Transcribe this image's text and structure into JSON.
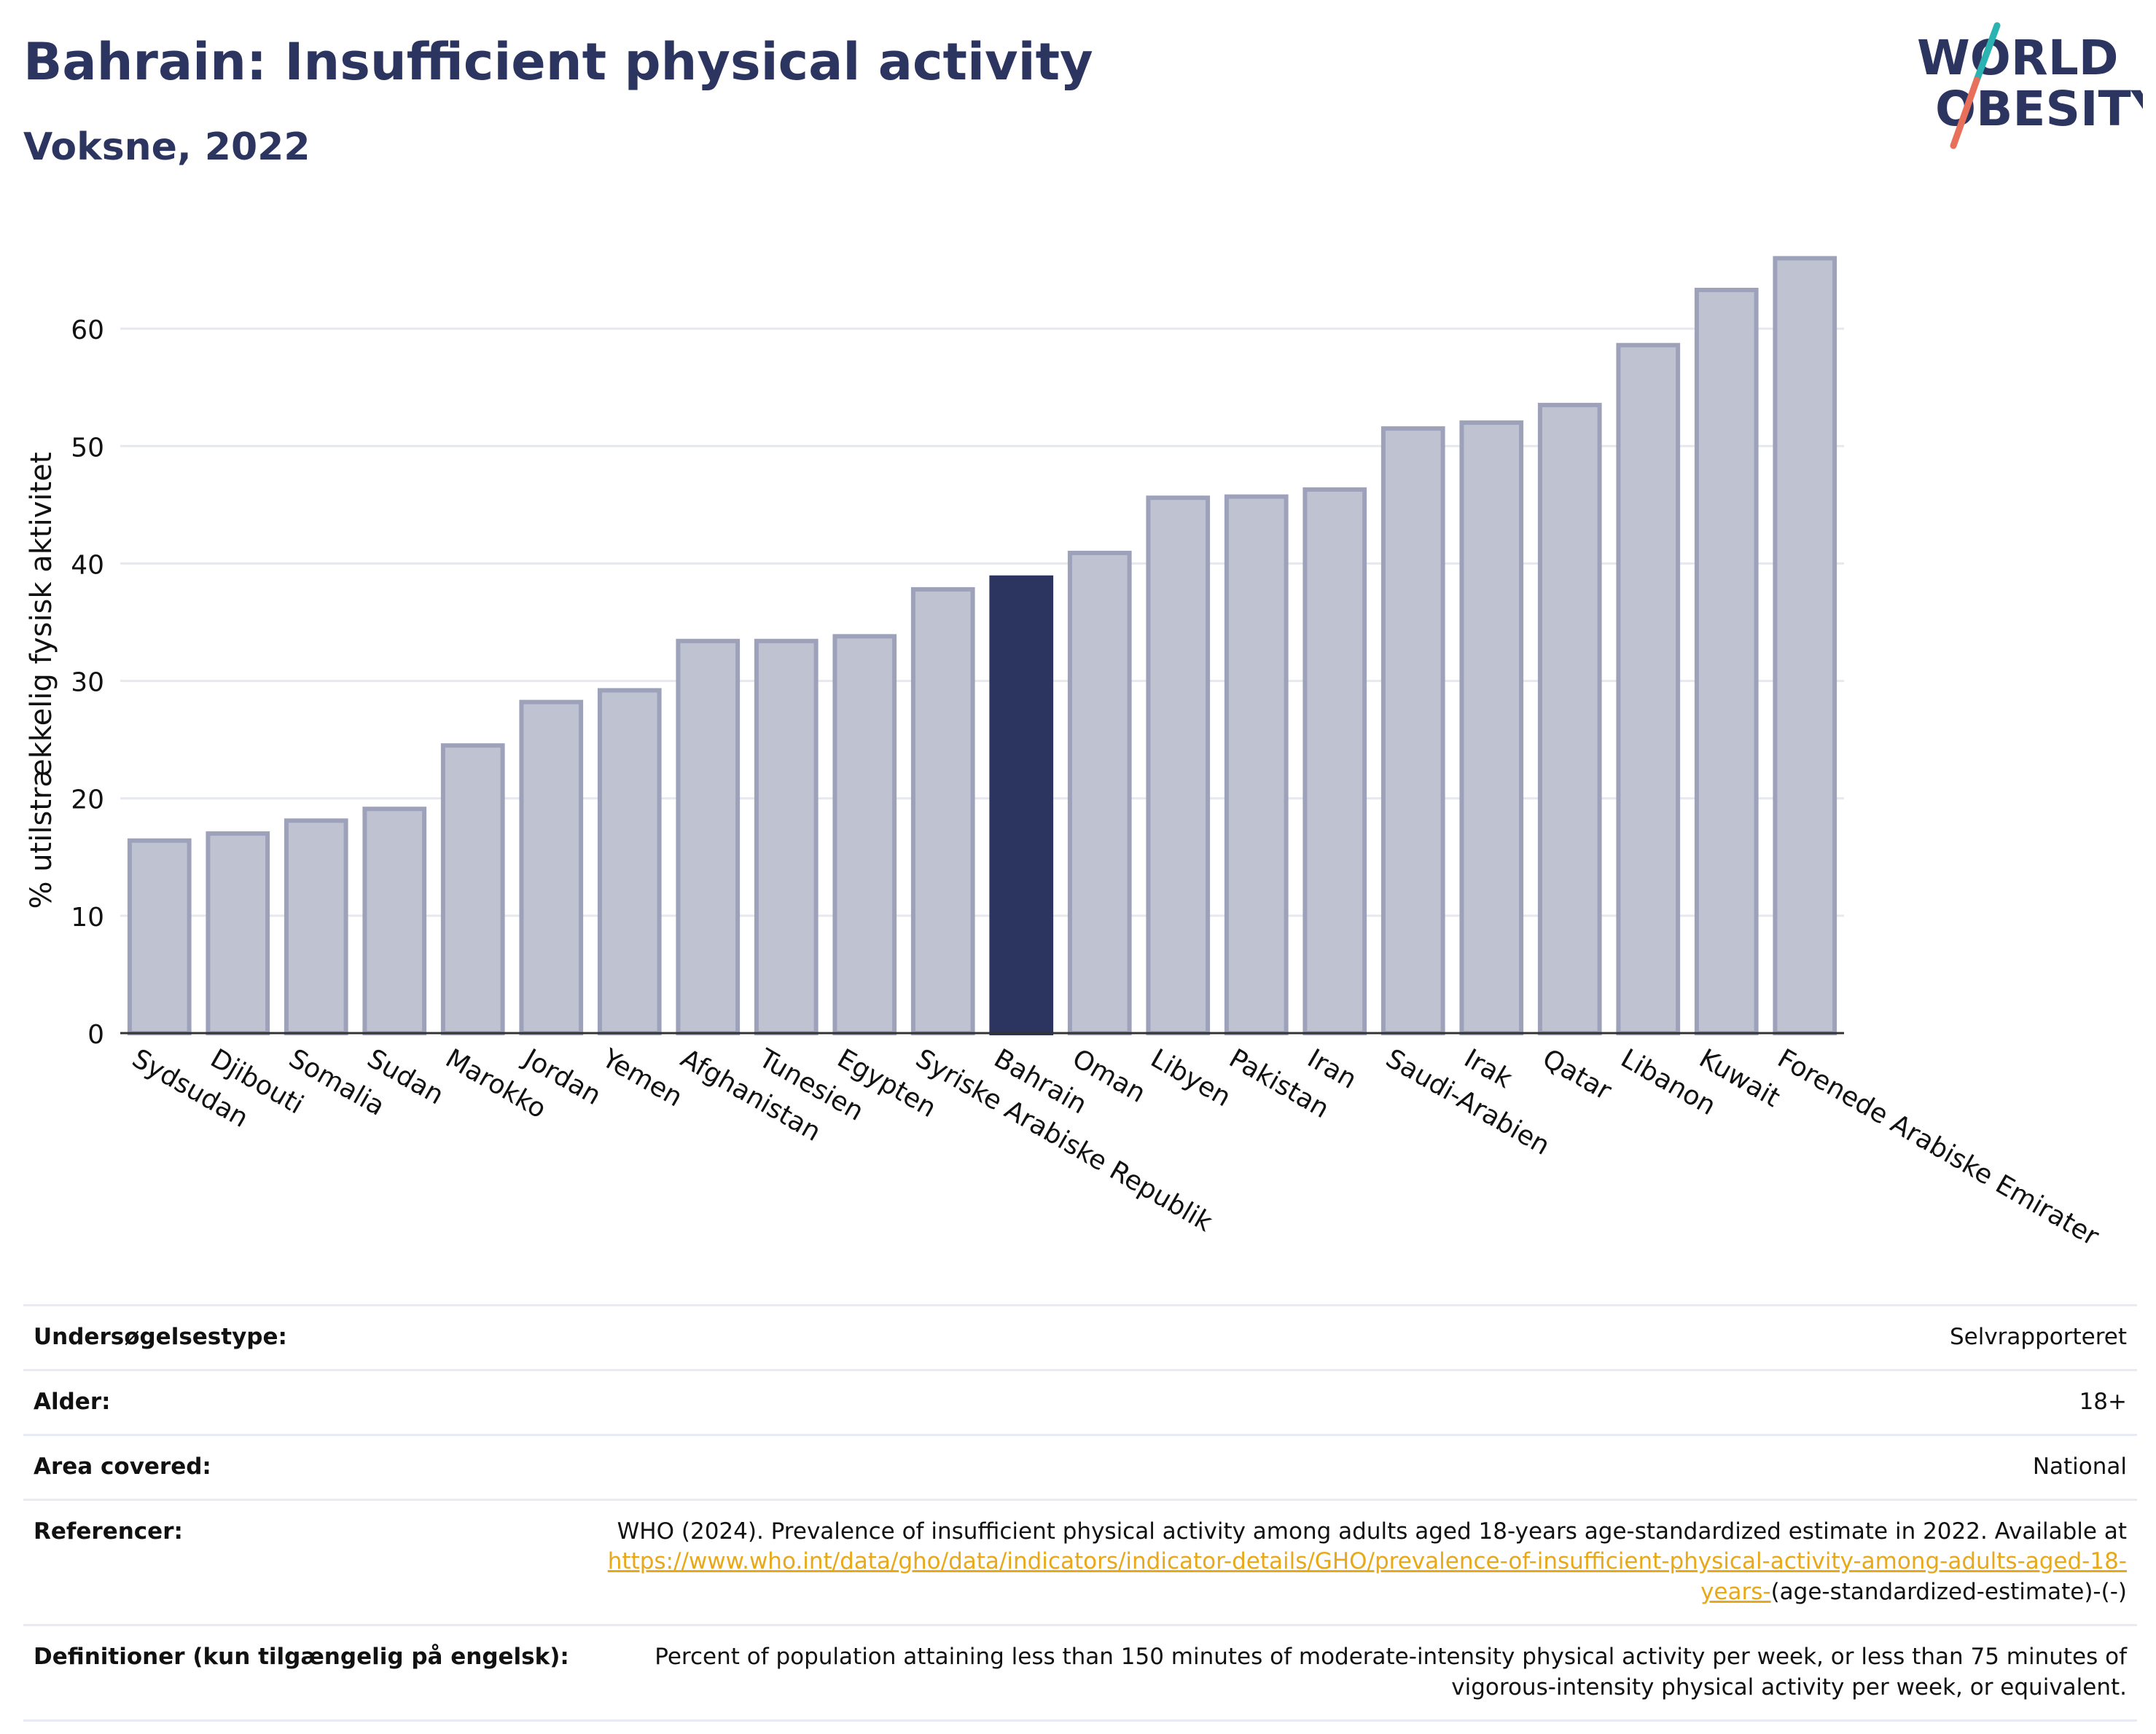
{
  "header": {
    "title": "Bahrain: Insufficient physical activity",
    "subtitle": "Voksne, 2022"
  },
  "logo": {
    "line1": "WORLD",
    "line2": "OBESITY",
    "colors": {
      "text": "#2c3560",
      "slash_top": "#2bb3b1",
      "slash_bottom": "#e8705a"
    }
  },
  "chart_data": {
    "type": "bar",
    "categories": [
      "Sydsudan",
      "Djibouti",
      "Somalia",
      "Sudan",
      "Marokko",
      "Jordan",
      "Yemen",
      "Afghanistan",
      "Tunesien",
      "Egypten",
      "Syriske Arabiske Republik",
      "Bahrain",
      "Oman",
      "Libyen",
      "Pakistan",
      "Iran",
      "Saudi-Arabien",
      "Irak",
      "Qatar",
      "Libanon",
      "Kuwait",
      "Forenede Arabiske Emirater"
    ],
    "values": [
      16.4,
      17.0,
      18.1,
      19.1,
      24.5,
      28.2,
      29.2,
      33.4,
      33.4,
      33.8,
      37.8,
      38.8,
      40.9,
      45.6,
      45.7,
      46.3,
      51.5,
      52.0,
      53.5,
      58.6,
      63.3,
      66.0
    ],
    "highlight": "Bahrain",
    "title": "",
    "xlabel": "",
    "ylabel": "% utilstrækkelig fysisk aktivitet",
    "ylim": [
      0,
      70
    ],
    "yticks": [
      0,
      10,
      20,
      30,
      40,
      50,
      60
    ],
    "grid": true,
    "colors": {
      "bar": "#bfc2d0",
      "bar_edge": "#9da2ba",
      "highlight": "#2c3560",
      "grid": "#e6e8ef"
    }
  },
  "info": {
    "rows": [
      {
        "label": "Undersøgelsestype:",
        "value": "Selvrapporteret"
      },
      {
        "label": "Alder:",
        "value": "18+"
      },
      {
        "label": "Area covered:",
        "value": "National"
      }
    ],
    "reference": {
      "label": "Referencer:",
      "text": "WHO (2024). Prevalence of insufficient physical activity among adults aged 18-years age-standardized estimate in 2022. Available at",
      "link": "https://www.who.int/data/gho/data/indicators/indicator-details/GHO/prevalence-of-insufficient-physical-activity-among-adults-aged-18-years-",
      "suffix": "(age-standardized-estimate)-(-)"
    },
    "definition": {
      "label": "Definitioner (kun tilgængelig på engelsk):",
      "text": "Percent of population attaining less than 150 minutes of moderate-intensity physical activity per week, or less than 75 minutes of vigorous-intensity physical activity per week, or equivalent."
    }
  }
}
